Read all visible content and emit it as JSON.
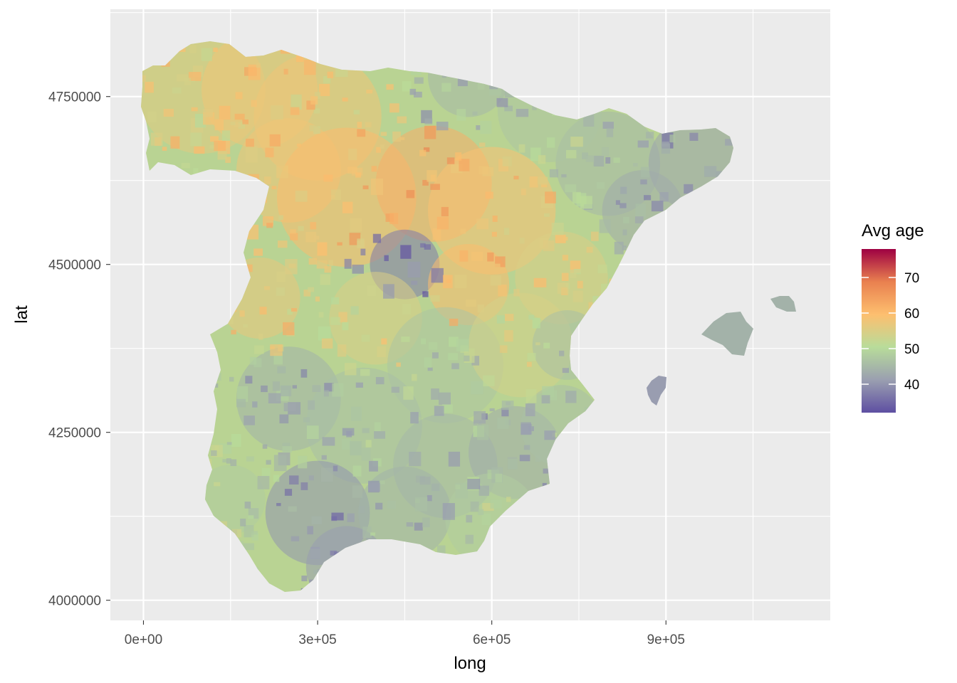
{
  "chart_data": {
    "type": "heatmap",
    "subtype": "choropleth map of municipalities",
    "title": "",
    "xlabel": "long",
    "ylabel": "lat",
    "x_ticks": [
      {
        "value": 0,
        "label": "0e+00"
      },
      {
        "value": 300000,
        "label": "3e+05"
      },
      {
        "value": 600000,
        "label": "6e+05"
      },
      {
        "value": 900000,
        "label": "9e+05"
      }
    ],
    "y_ticks": [
      {
        "value": 4000000,
        "label": "4000000"
      },
      {
        "value": 4250000,
        "label": "4250000"
      },
      {
        "value": 4500000,
        "label": "4500000"
      },
      {
        "value": 4750000,
        "label": "4750000"
      }
    ],
    "xlim": [
      -57000,
      1183000
    ],
    "ylim": [
      3970000,
      4880000
    ],
    "grid": true,
    "panel_background": "#ebebeb",
    "legend": {
      "title": "Avg age",
      "placement": "right",
      "range": [
        32,
        78
      ],
      "ticks": [
        {
          "value": 40,
          "label": "40"
        },
        {
          "value": 50,
          "label": "50"
        },
        {
          "value": 60,
          "label": "60"
        },
        {
          "value": 70,
          "label": "70"
        }
      ],
      "palette": [
        "#5e4fa2",
        "#9a9fb0",
        "#b8dc9a",
        "#fdbf6f",
        "#e9804f",
        "#9e0142"
      ]
    },
    "regions": [
      {
        "name": "Mainland",
        "avg_age_pattern": "older interior north (55-70), younger south and east coast (38-45)"
      },
      {
        "name": "Mallorca/Menorca"
      },
      {
        "name": "Ibiza"
      }
    ]
  }
}
